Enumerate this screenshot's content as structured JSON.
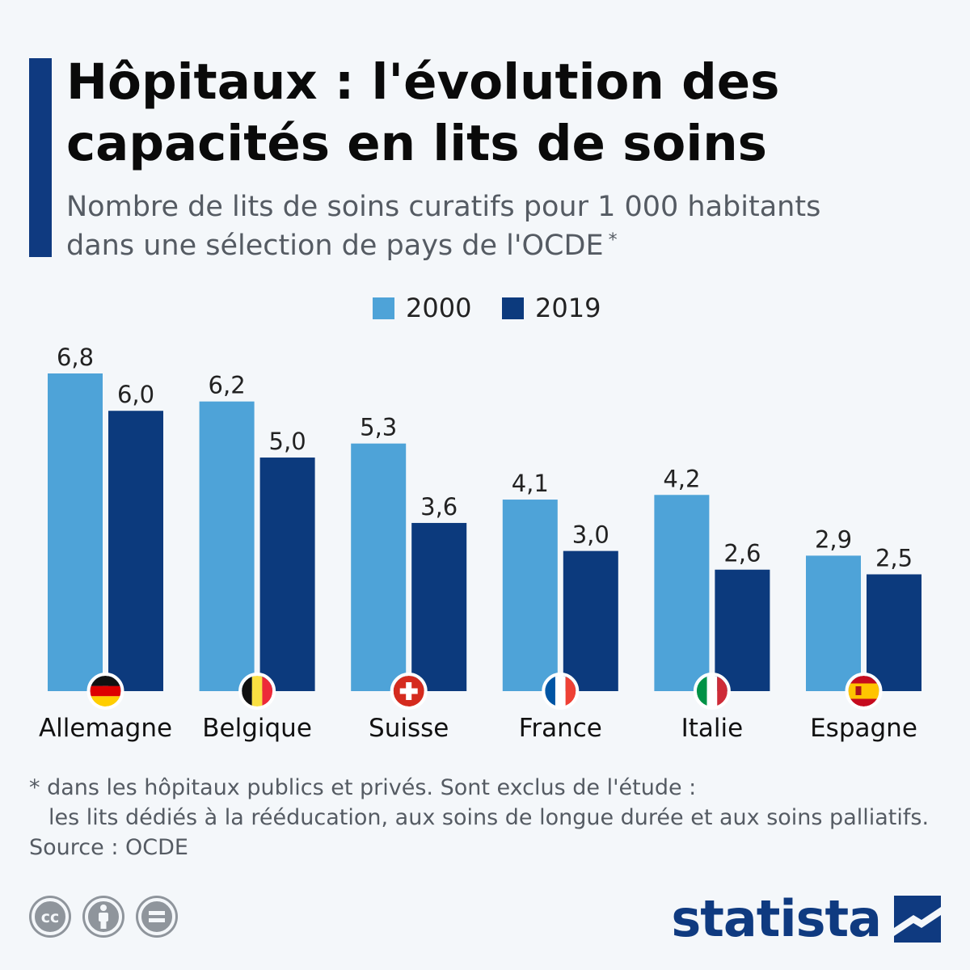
{
  "header": {
    "title_line1": "Hôpitaux : l'évolution des",
    "title_line2": "capacités en lits de soins",
    "subtitle_line1": "Nombre de lits de soins curatifs pour 1 000 habitants",
    "subtitle_line2": "dans une sélection de pays de l'OCDE",
    "subtitle_marker": "*"
  },
  "colors": {
    "accent": "#0f3a80",
    "series_2000": "#4ea3d8",
    "series_2019": "#0c3a7d",
    "background": "#f4f7fa"
  },
  "chart_data": {
    "type": "bar",
    "categories": [
      "Allemagne",
      "Belgique",
      "Suisse",
      "France",
      "Italie",
      "Espagne"
    ],
    "category_flags": [
      "flag-germany-icon",
      "flag-belgium-icon",
      "flag-switzerland-icon",
      "flag-france-icon",
      "flag-italy-icon",
      "flag-spain-icon"
    ],
    "series": [
      {
        "name": "2000",
        "values": [
          6.8,
          6.2,
          5.3,
          4.1,
          4.2,
          2.9
        ],
        "labels": [
          "6,8",
          "6,2",
          "5,3",
          "4,1",
          "4,2",
          "2,9"
        ],
        "color": "#4ea3d8"
      },
      {
        "name": "2019",
        "values": [
          6.0,
          5.0,
          3.6,
          3.0,
          2.6,
          2.5
        ],
        "labels": [
          "6,0",
          "5,0",
          "3,6",
          "3,0",
          "2,6",
          "2,5"
        ],
        "color": "#0c3a7d"
      }
    ],
    "ylim": [
      0,
      6.8
    ],
    "legend_position": "top-center",
    "grid": false
  },
  "footer": {
    "note_line1": "* dans les hôpitaux publics et privés. Sont exclus de l'étude :",
    "note_line2": "les lits dédiés à la rééducation, aux soins de longue durée et aux soins palliatifs.",
    "source": "Source : OCDE",
    "license_icons": [
      "creative-commons-icon",
      "attribution-icon",
      "no-derivatives-icon"
    ],
    "brand": "statista"
  }
}
